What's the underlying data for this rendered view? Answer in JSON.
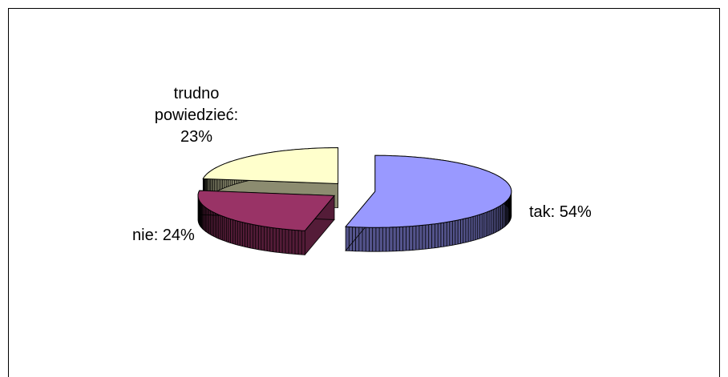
{
  "chart_data": {
    "type": "pie3d",
    "values": [
      54,
      24,
      23
    ],
    "value_labels": [
      "tak: 54%",
      "nie: 24%",
      "trudno powiedzieć: 23%"
    ],
    "colors": [
      "#9999ff",
      "#993366",
      "#ffffcc"
    ]
  }
}
